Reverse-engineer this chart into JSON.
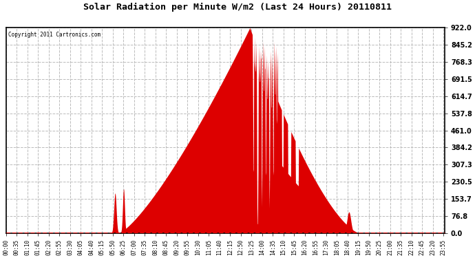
{
  "title": "Solar Radiation per Minute W/m2 (Last 24 Hours) 20110811",
  "copyright_text": "Copyright 2011 Cartronics.com",
  "y_max": 922.0,
  "y_min": 0.0,
  "y_ticks": [
    0.0,
    76.8,
    153.7,
    230.5,
    307.3,
    384.2,
    461.0,
    537.8,
    614.7,
    691.5,
    768.3,
    845.2,
    922.0
  ],
  "background_color": "#ffffff",
  "fill_color": "#dd0000",
  "line_color": "#dd0000",
  "dashed_line_color": "#ff0000",
  "grid_color": "#bbbbbb",
  "title_color": "#000000",
  "n_minutes": 1440,
  "tick_step": 35,
  "sunrise": 330,
  "sunset": 1160,
  "peak_minute": 800,
  "figsize": [
    6.9,
    3.75
  ],
  "dpi": 100
}
